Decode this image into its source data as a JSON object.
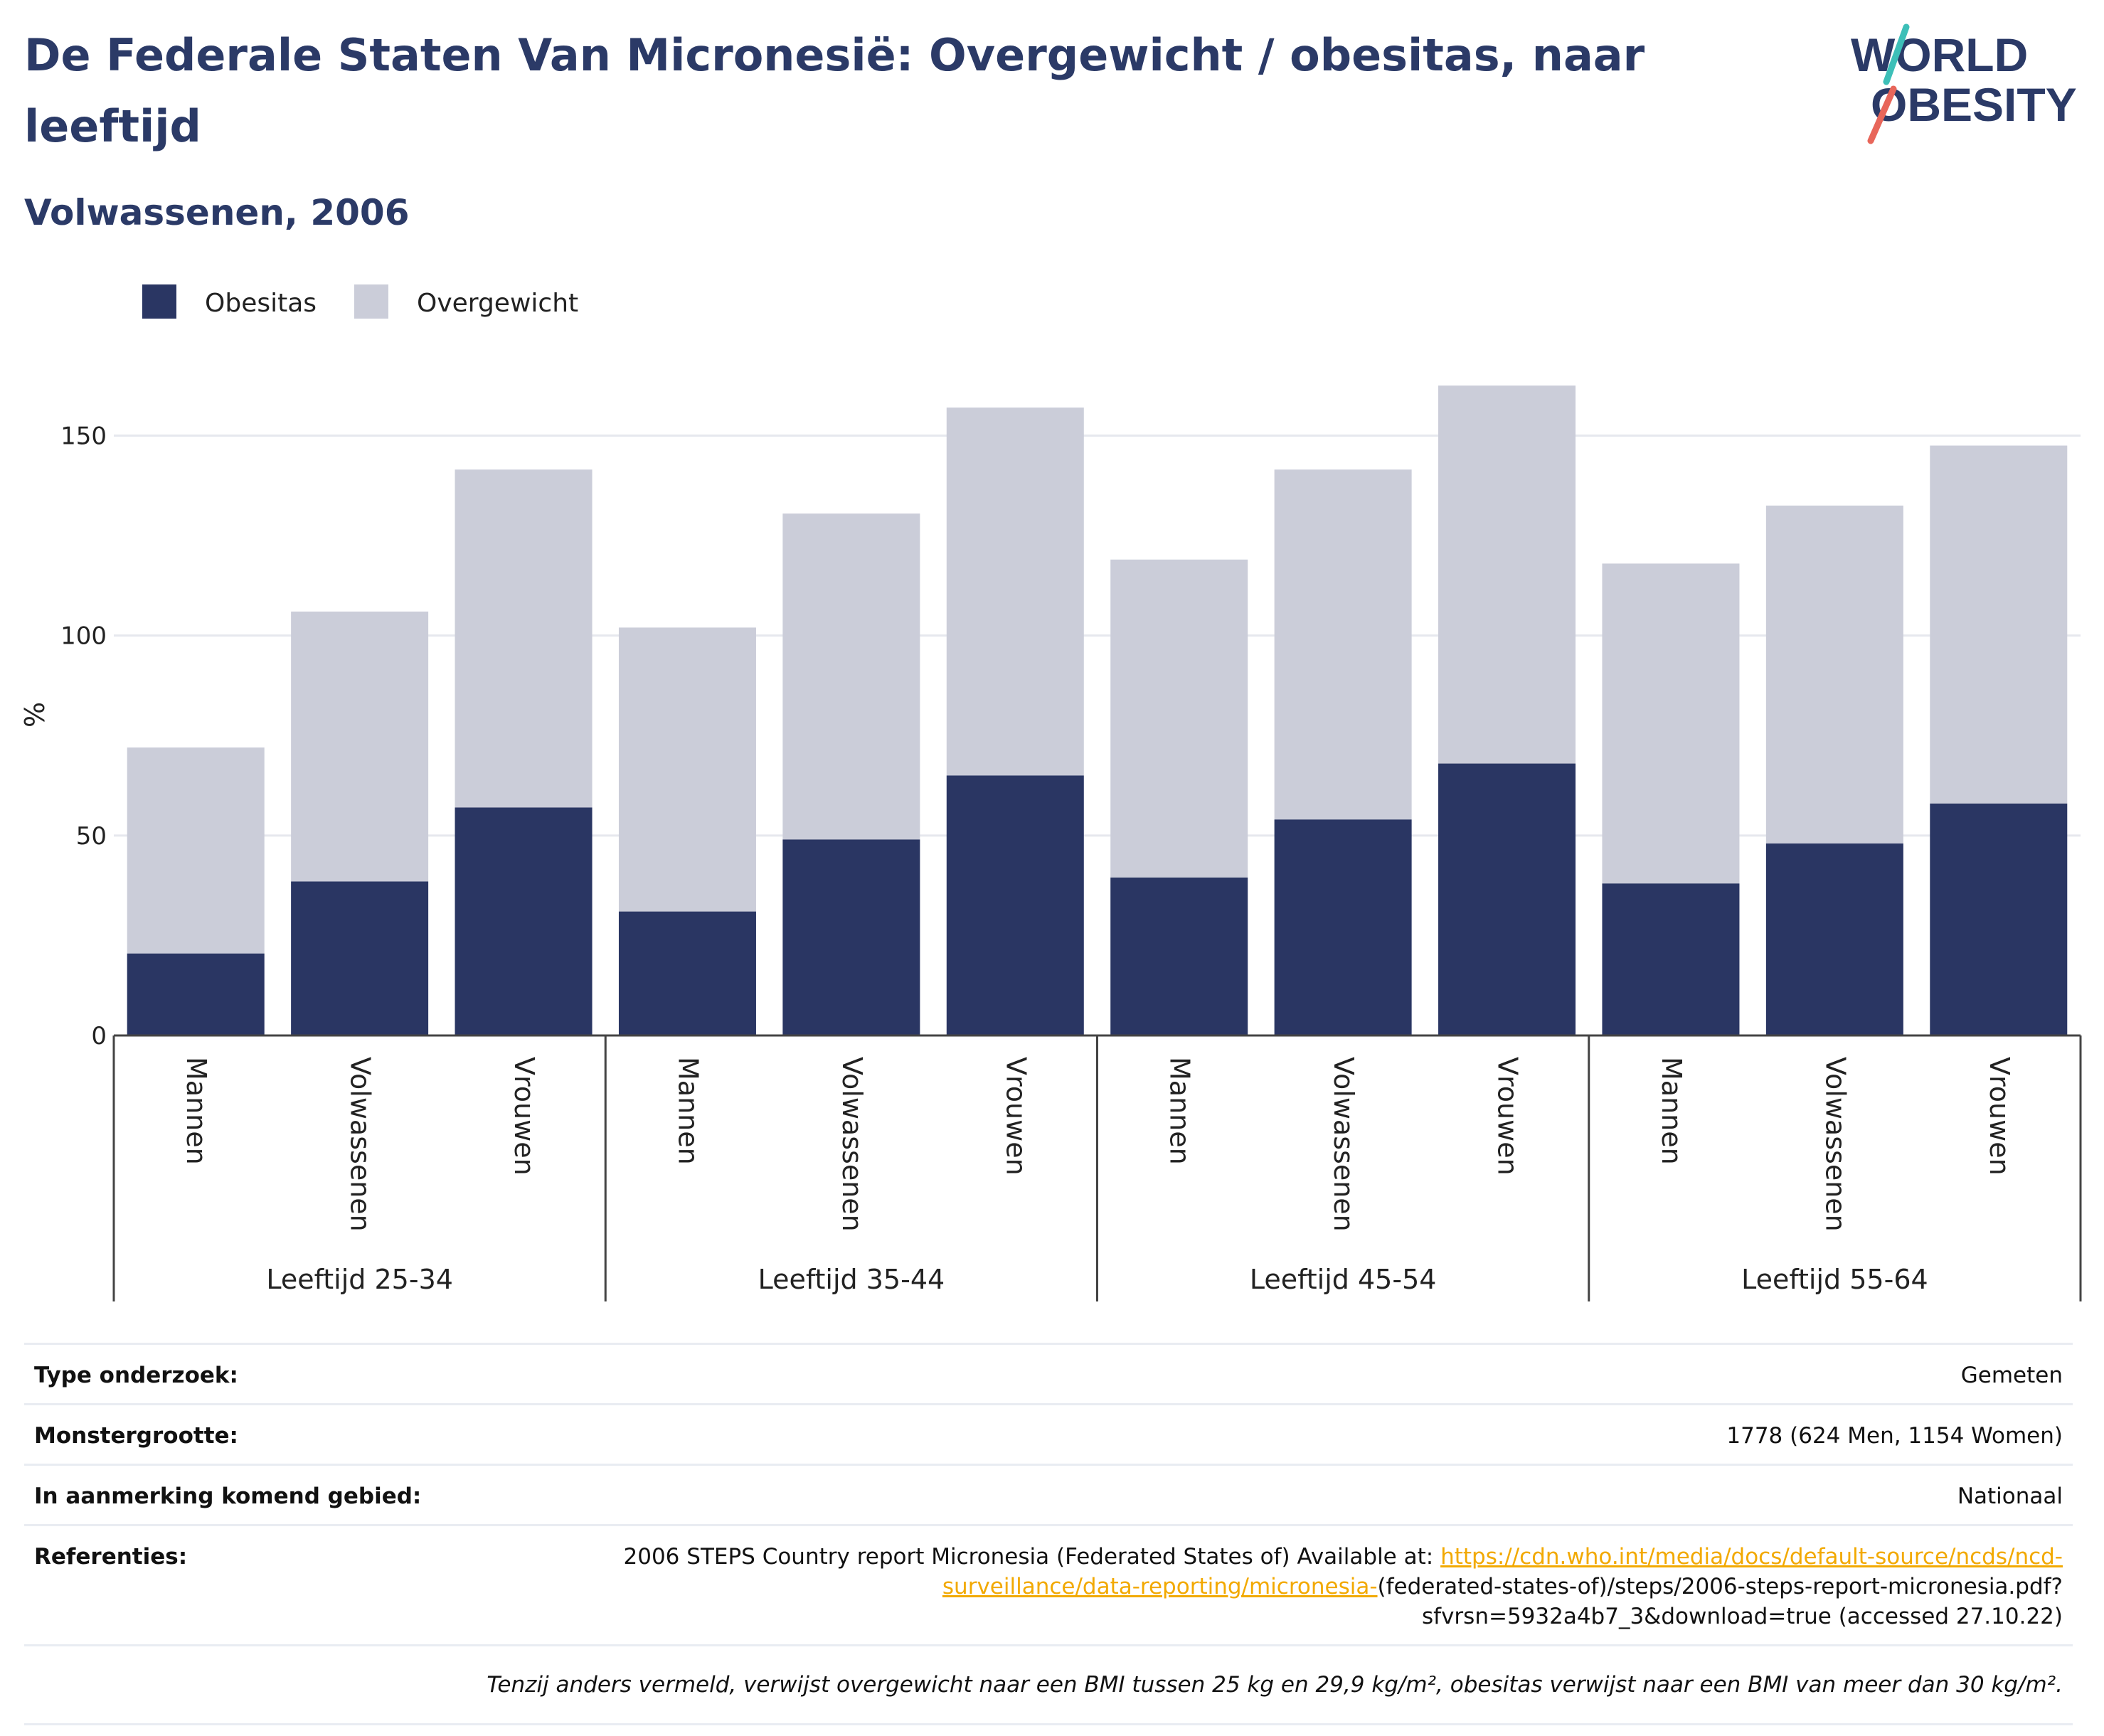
{
  "title": "De Federale Staten Van Micronesië: Overgewicht / obesitas, naar leeftijd",
  "subtitle": "Volwassenen, 2006",
  "logo": {
    "line1": "WORLD",
    "line2": "OBESITY"
  },
  "colors": {
    "obesitas": "#2a3663",
    "overgewicht": "#cbcdd9",
    "text": "#2b3a67",
    "accent_teal": "#3dbfb8",
    "accent_coral": "#e8665a"
  },
  "chart_data": {
    "type": "bar",
    "stacked": true,
    "ylabel": "%",
    "ylim": [
      0,
      170
    ],
    "yticks": [
      0,
      50,
      100,
      150
    ],
    "legend": [
      "Obesitas",
      "Overgewicht"
    ],
    "legend_position": "top-left",
    "grid": true,
    "groups": [
      {
        "label": "Leeftijd 25-34",
        "categories": [
          "Mannen",
          "Volwassenen",
          "Vrouwen"
        ]
      },
      {
        "label": "Leeftijd 35-44",
        "categories": [
          "Mannen",
          "Volwassenen",
          "Vrouwen"
        ]
      },
      {
        "label": "Leeftijd 45-54",
        "categories": [
          "Mannen",
          "Volwassenen",
          "Vrouwen"
        ]
      },
      {
        "label": "Leeftijd 55-64",
        "categories": [
          "Mannen",
          "Volwassenen",
          "Vrouwen"
        ]
      }
    ],
    "series": [
      {
        "name": "Obesitas",
        "values": [
          20.5,
          38.5,
          57.0,
          31.0,
          49.0,
          65.0,
          39.5,
          54.0,
          68.0,
          38.0,
          48.0,
          58.0
        ]
      },
      {
        "name": "Overgewicht",
        "values": [
          51.5,
          67.5,
          84.5,
          71.0,
          81.5,
          92.0,
          79.5,
          87.5,
          94.5,
          80.0,
          84.5,
          89.5
        ]
      }
    ]
  },
  "meta": {
    "rows": [
      {
        "label": "Type onderzoek:",
        "value": "Gemeten"
      },
      {
        "label": "Monstergrootte:",
        "value": "1778 (624 Men, 1154 Women)"
      },
      {
        "label": "In aanmerking komend gebied:",
        "value": "Nationaal"
      }
    ],
    "ref_label": "Referenties:",
    "ref_prefix": "2006 STEPS Country report Micronesia (Federated States of) Available at: ",
    "ref_link": "https://cdn.who.int/media/docs/default-source/ncds/ncd-surveillance/data-reporting/micronesia-",
    "ref_suffix": "(federated-states-of)/steps/2006-steps-report-micronesia.pdf?sfvrsn=5932a4b7_3&download=true (accessed 27.10.22)",
    "note": "Tenzij anders vermeld, verwijst overgewicht naar een BMI tussen 25 kg en 29,9 kg/m², obesitas verwijst naar een BMI van meer dan 30 kg/m²."
  }
}
